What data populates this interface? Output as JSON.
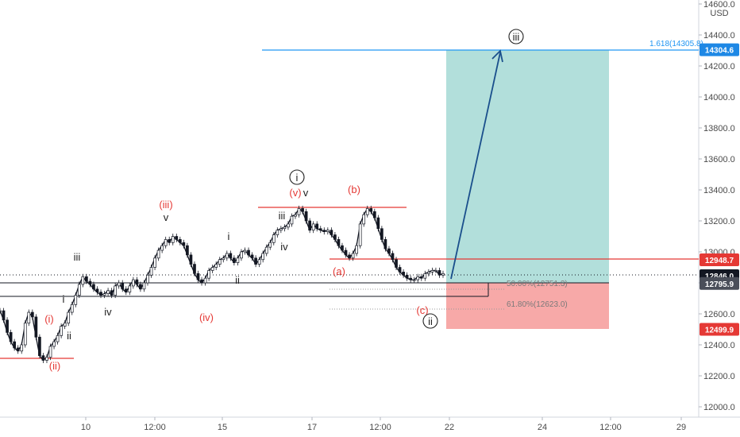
{
  "chart_data": {
    "type": "candlestick",
    "currency": "USD",
    "y_axis": {
      "ticks": [
        12000,
        12200,
        12400,
        12600,
        12800,
        13000,
        13200,
        13400,
        13600,
        13800,
        14000,
        14200,
        14400,
        14600
      ],
      "tick_labels": [
        "12000.0",
        "12200.0",
        "12400.0",
        "12600.0",
        "12800.0",
        "13000.0",
        "13200.0",
        "13400.0",
        "13600.0",
        "13800.0",
        "14000.0",
        "14200.0",
        "14400.0",
        "14600.0"
      ],
      "range": [
        11980,
        14620
      ]
    },
    "x_axis": {
      "tick_labels": [
        "10",
        "12:00",
        "15",
        "17",
        "12:00",
        "22",
        "24",
        "12:00",
        "29"
      ]
    },
    "price_tags": [
      {
        "label": "14304.6",
        "value": 14304.6,
        "color": "#1e88e5"
      },
      {
        "label": "12948.7",
        "value": 12948.7,
        "color": "#e53935"
      },
      {
        "label": "12846.0",
        "value": 12846.0,
        "color": "#131722"
      },
      {
        "label": "12795.9",
        "value": 12795.9,
        "color": "#4a4e59"
      },
      {
        "label": "12499.9",
        "value": 12499.9,
        "color": "#e53935"
      }
    ],
    "fib_levels": [
      {
        "label": "1.618(14305.8)",
        "value": 14305.8
      },
      {
        "label": "50.00%(12751.3)",
        "value": 12751.3
      },
      {
        "label": "61.80%(12623.0)",
        "value": 12623.0
      }
    ],
    "position": {
      "entry": 12795.9,
      "target": 14304.6,
      "stop": 12499.9
    },
    "wave_labels_red": [
      "(i)",
      "(ii)",
      "(iii)",
      "(iv)",
      "(v)",
      "(a)",
      "(b)",
      "(c)"
    ],
    "wave_labels_black": [
      "i",
      "ii",
      "iii",
      "iv",
      "v",
      "i",
      "ii",
      "iii",
      "iv",
      "v"
    ],
    "wave_labels_circled": [
      "i",
      "ii",
      "iii"
    ],
    "close_series": [
      12620,
      12560,
      12480,
      12420,
      12380,
      12360,
      12400,
      12540,
      12610,
      12580,
      12450,
      12330,
      12300,
      12320,
      12390,
      12420,
      12460,
      12520,
      12540,
      12610,
      12660,
      12720,
      12790,
      12840,
      12810,
      12790,
      12760,
      12740,
      12720,
      12730,
      12750,
      12720,
      12780,
      12800,
      12760,
      12740,
      12780,
      12820,
      12790,
      12760,
      12800,
      12850,
      12900,
      12960,
      13010,
      13040,
      13080,
      13060,
      13100,
      13080,
      13060,
      13040,
      12980,
      12920,
      12860,
      12820,
      12800,
      12830,
      12880,
      12900,
      12920,
      12950,
      12960,
      12990,
      12960,
      12930,
      12960,
      13000,
      13010,
      12980,
      12960,
      12920,
      12950,
      12990,
      13030,
      13060,
      13110,
      13140,
      13150,
      13160,
      13180,
      13230,
      13240,
      13280,
      13260,
      13200,
      13140,
      13180,
      13150,
      13140,
      13130,
      13140,
      13110,
      13080,
      13040,
      13010,
      12980,
      12960,
      12990,
      13040,
      13180,
      13240,
      13280,
      13260,
      13220,
      13150,
      13080,
      13020,
      12990,
      12950,
      12900,
      12870,
      12850,
      12830,
      12820,
      12820,
      12840,
      12830,
      12860,
      12870,
      12880,
      12880,
      12850,
      12860
    ],
    "close_series_range": {
      "x_start": 0,
      "x_end": 560
    }
  }
}
